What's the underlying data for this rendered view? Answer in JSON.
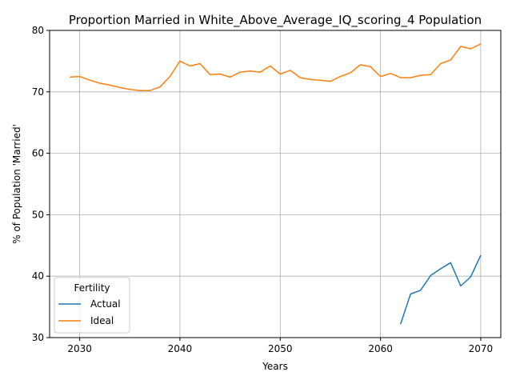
{
  "chart_data": {
    "type": "line",
    "title": "Proportion Married in White_Above_Average_IQ_scoring_4 Population",
    "xlabel": "Years",
    "ylabel": "% of Population 'Married'",
    "xlim": [
      2027,
      2072
    ],
    "ylim": [
      30,
      80
    ],
    "xticks": [
      2030,
      2040,
      2050,
      2060,
      2070
    ],
    "yticks": [
      30,
      40,
      50,
      60,
      70,
      80
    ],
    "grid": true,
    "legend": {
      "title": "Fertility",
      "placement": "lower-left"
    },
    "series": [
      {
        "name": "Actual",
        "color": "#1f77b4",
        "x": [
          2062,
          2063,
          2064,
          2065,
          2066,
          2067,
          2068,
          2069,
          2070
        ],
        "y": [
          32.2,
          37.1,
          37.7,
          40.1,
          41.2,
          42.2,
          38.4,
          39.9,
          43.4
        ]
      },
      {
        "name": "Ideal",
        "color": "#ff7f0e",
        "x": [
          2029,
          2030,
          2031,
          2032,
          2033,
          2034,
          2035,
          2036,
          2037,
          2038,
          2039,
          2040,
          2041,
          2042,
          2043,
          2044,
          2045,
          2046,
          2047,
          2048,
          2049,
          2050,
          2051,
          2052,
          2053,
          2054,
          2055,
          2056,
          2057,
          2058,
          2059,
          2060,
          2061,
          2062,
          2063,
          2064,
          2065,
          2066,
          2067,
          2068,
          2069,
          2070
        ],
        "y": [
          72.4,
          72.5,
          71.9,
          71.4,
          71.1,
          70.7,
          70.4,
          70.2,
          70.2,
          70.8,
          72.5,
          75.0,
          74.2,
          74.6,
          72.8,
          72.9,
          72.4,
          73.2,
          73.4,
          73.2,
          74.2,
          72.9,
          73.5,
          72.3,
          72.0,
          71.9,
          71.7,
          72.5,
          73.1,
          74.4,
          74.1,
          72.5,
          73.0,
          72.3,
          72.3,
          72.7,
          72.8,
          74.6,
          75.2,
          77.4,
          77.0,
          77.8
        ]
      }
    ]
  }
}
